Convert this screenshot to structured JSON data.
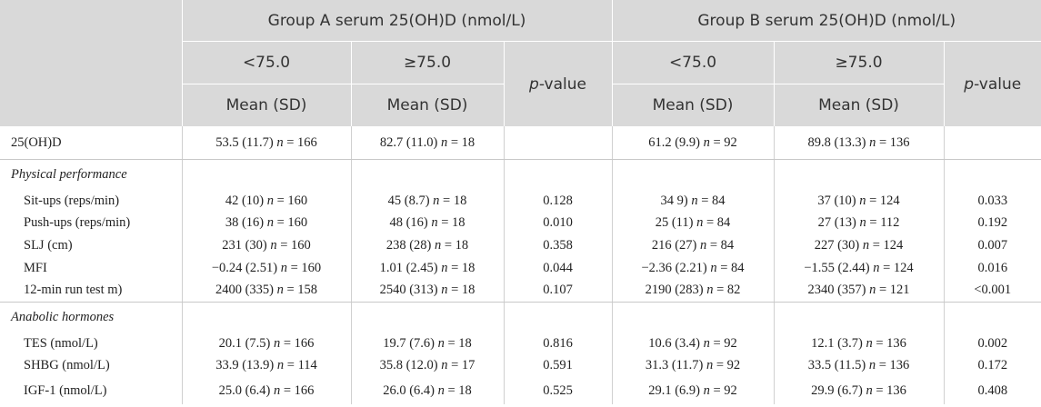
{
  "header": {
    "group_a": "Group A serum 25(OH)D (nmol/L)",
    "group_b": "Group B serum 25(OH)D (nmol/L)",
    "lt": "<75.0",
    "ge": "≥75.0",
    "mean_sd": "Mean (SD)",
    "p_italic": "p",
    "p_rest": "-value"
  },
  "rows": {
    "ohd": {
      "label": "25(OH)D",
      "a_lt": "53.5 (11.7) n = 166",
      "a_ge": "82.7 (11.0) n = 18",
      "a_p": "",
      "b_lt": "61.2 (9.9) n = 92",
      "b_ge": "89.8 (13.3) n = 136",
      "b_p": ""
    },
    "phys_heading": "Physical performance",
    "situps": {
      "label": "Sit-ups (reps/min)",
      "a_lt": "42 (10) n = 160",
      "a_ge": "45 (8.7) n = 18",
      "a_p": "0.128",
      "b_lt": "34 9) n = 84",
      "b_ge": "37 (10) n = 124",
      "b_p": "0.033"
    },
    "pushups": {
      "label": "Push-ups (reps/min)",
      "a_lt": "38 (16) n = 160",
      "a_ge": "48 (16) n = 18",
      "a_p": "0.010",
      "b_lt": "25 (11) n = 84",
      "b_ge": "27 (13) n = 112",
      "b_p": "0.192"
    },
    "slj": {
      "label": "SLJ (cm)",
      "a_lt": "231 (30) n = 160",
      "a_ge": "238 (28) n = 18",
      "a_p": "0.358",
      "b_lt": "216 (27) n = 84",
      "b_ge": "227 (30) n = 124",
      "b_p": "0.007"
    },
    "mfi": {
      "label": "MFI",
      "a_lt": "−0.24 (2.51) n = 160",
      "a_ge": "1.01 (2.45) n = 18",
      "a_p": "0.044",
      "b_lt": "−2.36 (2.21) n = 84",
      "b_ge": "−1.55 (2.44) n = 124",
      "b_p": "0.016"
    },
    "run": {
      "label": "12-min run test m)",
      "a_lt": "2400 (335) n = 158",
      "a_ge": "2540 (313) n = 18",
      "a_p": "0.107",
      "b_lt": "2190 (283) n = 82",
      "b_ge": "2340 (357) n = 121",
      "b_p": "<0.001"
    },
    "horm_heading": "Anabolic hormones",
    "tes": {
      "label": "TES (nmol/L)",
      "a_lt": "20.1 (7.5) n = 166",
      "a_ge": "19.7 (7.6) n = 18",
      "a_p": "0.816",
      "b_lt": "10.6 (3.4) n = 92",
      "b_ge": "12.1 (3.7) n = 136",
      "b_p": "0.002"
    },
    "shbg": {
      "label": "SHBG (nmol/L)",
      "a_lt": "33.9 (13.9) n = 114",
      "a_ge": "35.8 (12.0) n = 17",
      "a_p": "0.591",
      "b_lt": "31.3 (11.7) n = 92",
      "b_ge": "33.5 (11.5) n = 136",
      "b_p": "0.172"
    },
    "igf": {
      "label": "IGF-1 (nmol/L)",
      "a_lt": "25.0 (6.4) n = 166",
      "a_ge": "26.0 (6.4) n = 18",
      "a_p": "0.525",
      "b_lt": "29.1 (6.9) n = 92",
      "b_ge": "29.9 (6.7) n = 136",
      "b_p": "0.408"
    }
  }
}
